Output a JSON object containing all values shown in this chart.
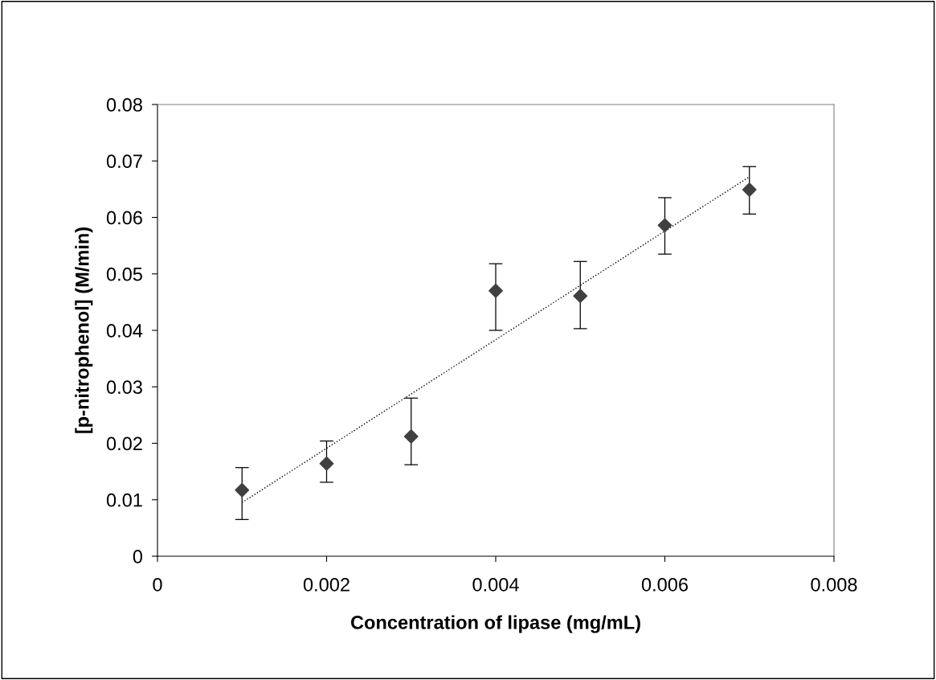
{
  "chart_data": {
    "type": "scatter",
    "xlabel": "Concentration of lipase (mg/mL)",
    "ylabel": "[p-nitrophenol] (M/min)",
    "xlim": [
      0,
      0.008
    ],
    "xticks": [
      0,
      0.002,
      0.004,
      0.006,
      0.008
    ],
    "ylim": [
      0,
      0.08
    ],
    "yticks": [
      0,
      0.01,
      0.02,
      0.03,
      0.04,
      0.05,
      0.06,
      0.07,
      0.08
    ],
    "grid": false,
    "legend": false,
    "marker": "diamond",
    "series": [
      {
        "color": "#404040",
        "x": [
          0.001,
          0.002,
          0.003,
          0.004,
          0.005,
          0.006,
          0.007
        ],
        "values": [
          0.0117,
          0.0164,
          0.0212,
          0.047,
          0.0461,
          0.0586,
          0.0649
        ],
        "errors": [
          [
            0.0065,
            0.0157
          ],
          [
            0.0131,
            0.0204
          ],
          [
            0.0162,
            0.028
          ],
          [
            0.04,
            0.0518
          ],
          [
            0.0403,
            0.0522
          ],
          [
            0.0535,
            0.0635
          ],
          [
            0.0606,
            0.069
          ]
        ]
      },
      {
        "type": "line",
        "color": "#000000",
        "line_style": "dotted",
        "marker": "none",
        "x": [
          0.001,
          0.007
        ],
        "values": [
          0.0095,
          0.0672
        ]
      }
    ]
  }
}
